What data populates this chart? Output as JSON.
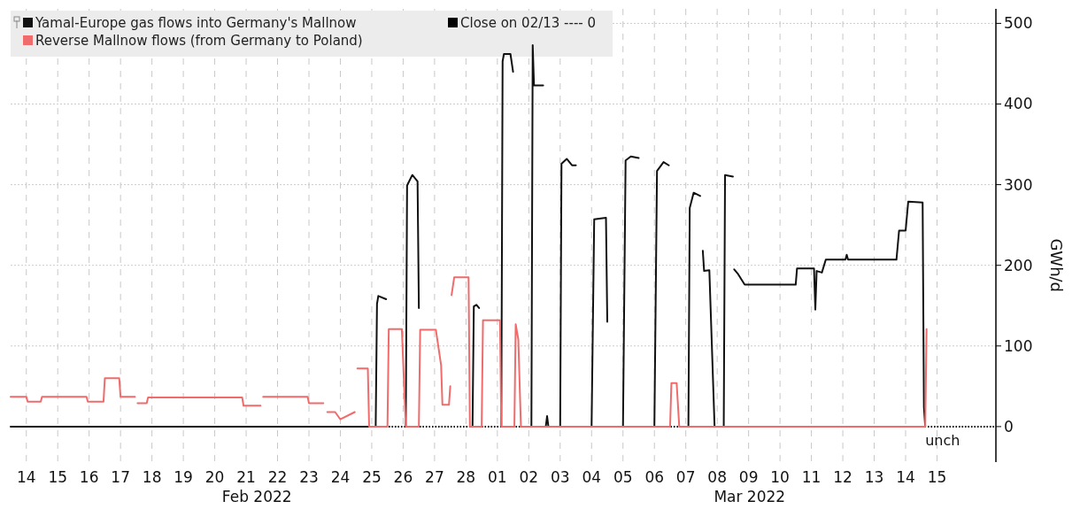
{
  "chart_data": {
    "type": "line",
    "ylabel": "GWh/d",
    "xlim": [
      "2022-02-14T00:00",
      "2022-03-17T09:00"
    ],
    "xticks": [
      {
        "value": "2022-02-14T12:00",
        "label": "14"
      },
      {
        "value": "2022-02-15T12:00",
        "label": "15"
      },
      {
        "value": "2022-02-16T12:00",
        "label": "16"
      },
      {
        "value": "2022-02-17T12:00",
        "label": "17"
      },
      {
        "value": "2022-02-18T12:00",
        "label": "18"
      },
      {
        "value": "2022-02-19T12:00",
        "label": "19"
      },
      {
        "value": "2022-02-20T12:00",
        "label": "20"
      },
      {
        "value": "2022-02-21T12:00",
        "label": "21"
      },
      {
        "value": "2022-02-22T12:00",
        "label": "22"
      },
      {
        "value": "2022-02-23T12:00",
        "label": "23"
      },
      {
        "value": "2022-02-24T12:00",
        "label": "24"
      },
      {
        "value": "2022-02-25T12:00",
        "label": "25"
      },
      {
        "value": "2022-02-26T12:00",
        "label": "26"
      },
      {
        "value": "2022-02-27T12:00",
        "label": "27"
      },
      {
        "value": "2022-02-28T12:00",
        "label": "28"
      },
      {
        "value": "2022-03-01T12:00",
        "label": "01"
      },
      {
        "value": "2022-03-02T12:00",
        "label": "02"
      },
      {
        "value": "2022-03-03T12:00",
        "label": "03"
      },
      {
        "value": "2022-03-04T12:00",
        "label": "04"
      },
      {
        "value": "2022-03-05T12:00",
        "label": "05"
      },
      {
        "value": "2022-03-06T12:00",
        "label": "06"
      },
      {
        "value": "2022-03-07T12:00",
        "label": "07"
      },
      {
        "value": "2022-03-08T12:00",
        "label": "08"
      },
      {
        "value": "2022-03-09T12:00",
        "label": "09"
      },
      {
        "value": "2022-03-10T12:00",
        "label": "10"
      },
      {
        "value": "2022-03-11T12:00",
        "label": "11"
      },
      {
        "value": "2022-03-12T12:00",
        "label": "12"
      },
      {
        "value": "2022-03-13T12:00",
        "label": "13"
      },
      {
        "value": "2022-03-14T12:00",
        "label": "14"
      },
      {
        "value": "2022-03-15T12:00",
        "label": "15"
      }
    ],
    "ylim": [
      -44,
      518
    ],
    "yticks": [
      0,
      100,
      200,
      300,
      400,
      500
    ],
    "grid": true,
    "legend": "top left",
    "line_style": "solid",
    "marker": "none",
    "ref_lines": [
      {
        "axis": "y",
        "value": 0,
        "label": "Close on 02/13 ---- 0",
        "color": "#000000",
        "line_style": "dotted"
      }
    ],
    "annotations": [
      {
        "text": "unch",
        "x": "2022-03-15T03:00",
        "y": 0
      },
      "Feb 2022",
      "Mar 2022"
    ],
    "series": [
      {
        "name": "Yamal-Europe gas flows into Germany's Mallnow",
        "color": "#111111",
        "x": [
          "2022-02-14T00:00",
          "2022-02-25T15:00",
          "2022-02-25T16:00",
          "2022-02-25T17:00",
          "2022-02-25T23:00",
          "2022-02-26T06:00",
          "2022-02-26T14:00",
          "2022-02-26T15:00",
          "2022-02-26T19:00",
          "2022-02-26T23:00",
          "2022-02-27T00:00",
          "2022-02-27T12:00",
          "2022-02-28T17:00",
          "2022-02-28T18:00",
          "2022-02-28T20:00",
          "2022-02-28T22:00",
          "2022-03-01T06:00",
          "2022-03-01T15:00",
          "2022-03-01T16:00",
          "2022-03-01T17:00",
          "2022-03-01T22:00",
          "2022-03-02T00:00",
          "2022-03-02T06:00",
          "2022-03-02T14:00",
          "2022-03-02T15:00",
          "2022-03-02T16:00",
          "2022-03-02T23:00",
          "2022-03-03T00:00",
          "2022-03-03T01:00",
          "2022-03-03T02:00",
          "2022-03-03T03:00",
          "2022-03-03T12:00",
          "2022-03-03T13:00",
          "2022-03-03T17:00",
          "2022-03-03T21:00",
          "2022-03-04T00:00",
          "2022-03-04T06:00",
          "2022-03-04T12:00",
          "2022-03-04T14:00",
          "2022-03-04T23:00",
          "2022-03-05T00:00",
          "2022-03-05T06:00",
          "2022-03-05T12:00",
          "2022-03-05T14:00",
          "2022-03-05T18:00",
          "2022-03-06T00:00",
          "2022-03-06T06:00",
          "2022-03-06T12:00",
          "2022-03-06T14:00",
          "2022-03-06T19:00",
          "2022-03-06T23:00",
          "2022-03-07T06:00",
          "2022-03-07T14:00",
          "2022-03-07T15:00",
          "2022-03-07T18:00",
          "2022-03-07T23:00",
          "2022-03-08T00:00",
          "2022-03-08T01:00",
          "2022-03-08T02:00",
          "2022-03-08T06:00",
          "2022-03-08T10:00",
          "2022-03-08T17:00",
          "2022-03-08T18:00",
          "2022-03-09T00:00",
          "2022-03-09T00:30",
          "2022-03-09T01:00",
          "2022-03-09T04:00",
          "2022-03-09T09:00",
          "2022-03-11T00:00",
          "2022-03-11T01:00",
          "2022-03-11T14:00",
          "2022-03-11T15:00",
          "2022-03-11T16:00",
          "2022-03-11T20:00",
          "2022-03-11T23:00",
          "2022-03-12T14:00",
          "2022-03-12T15:00",
          "2022-03-12T16:00",
          "2022-03-14T05:00",
          "2022-03-14T07:00",
          "2022-03-14T12:00",
          "2022-03-14T14:00",
          "2022-03-15T01:00",
          "2022-03-15T02:00",
          "2022-03-15T03:00"
        ],
        "values": [
          0,
          0,
          152,
          162,
          158,
          null,
          0,
          299,
          312,
          304,
          147,
          null,
          0,
          149,
          151,
          147,
          null,
          0,
          453,
          462,
          462,
          440,
          null,
          0,
          473,
          423,
          423,
          null,
          0,
          13,
          0,
          0,
          326,
          332,
          324,
          324,
          null,
          0,
          257,
          259,
          130,
          null,
          0,
          330,
          335,
          333,
          null,
          0,
          317,
          328,
          324,
          null,
          0,
          271,
          290,
          286,
          null,
          218,
          193,
          194,
          0,
          0,
          312,
          310,
          null,
          195,
          189,
          176,
          176,
          196,
          196,
          145,
          193,
          191,
          207,
          207,
          213,
          207,
          207,
          243,
          243,
          279,
          278,
          24,
          0
        ]
      },
      {
        "name": "Reverse Mallnow flows (from Germany to Poland)",
        "color": "#f06b6b",
        "x": [
          "2022-02-14T00:00",
          "2022-02-14T12:00",
          "2022-02-14T13:00",
          "2022-02-14T23:00",
          "2022-02-15T00:00",
          "2022-02-16T10:00",
          "2022-02-16T11:00",
          "2022-02-16T23:00",
          "2022-02-17T00:00",
          "2022-02-17T11:00",
          "2022-02-17T12:00",
          "2022-02-17T23:00",
          "2022-02-18T00:00",
          "2022-02-18T01:00",
          "2022-02-18T08:00",
          "2022-02-18T09:00",
          "2022-02-21T09:00",
          "2022-02-21T10:00",
          "2022-02-21T23:00",
          "2022-02-22T00:00",
          "2022-02-22T01:00",
          "2022-02-23T11:00",
          "2022-02-23T12:00",
          "2022-02-23T23:00",
          "2022-02-24T00:00",
          "2022-02-24T02:00",
          "2022-02-24T08:00",
          "2022-02-24T12:00",
          "2022-02-24T23:00",
          "2022-02-25T00:00",
          "2022-02-25T01:00",
          "2022-02-25T09:00",
          "2022-02-25T10:00",
          "2022-02-26T00:00",
          "2022-02-26T01:00",
          "2022-02-26T11:00",
          "2022-02-26T14:00",
          "2022-02-27T00:00",
          "2022-02-27T01:00",
          "2022-02-27T13:00",
          "2022-02-27T17:00",
          "2022-02-27T18:00",
          "2022-02-27T23:00",
          "2022-02-28T00:00",
          "2022-02-28T00:30",
          "2022-02-28T01:00",
          "2022-02-28T03:00",
          "2022-02-28T14:00",
          "2022-02-28T15:00",
          "2022-03-01T00:00",
          "2022-03-01T01:00",
          "2022-03-01T14:00",
          "2022-03-01T15:00",
          "2022-03-02T01:00",
          "2022-03-02T02:00",
          "2022-03-02T04:00",
          "2022-03-02T06:00",
          "2022-03-07T00:00",
          "2022-03-07T01:00",
          "2022-03-07T05:00",
          "2022-03-07T07:00",
          "2022-03-15T03:00",
          "2022-03-15T04:00"
        ],
        "values": [
          37,
          37,
          31,
          31,
          37,
          37,
          31,
          31,
          60,
          60,
          37,
          37,
          null,
          29,
          29,
          36,
          36,
          26,
          26,
          null,
          37,
          37,
          29,
          29,
          null,
          18,
          18,
          9,
          18,
          null,
          72,
          72,
          0,
          0,
          121,
          121,
          0,
          0,
          120,
          120,
          76,
          27,
          27,
          50,
          null,
          163,
          185,
          185,
          0,
          0,
          132,
          132,
          0,
          0,
          127,
          108,
          0,
          0,
          54,
          54,
          0,
          0,
          121
        ]
      }
    ]
  }
}
